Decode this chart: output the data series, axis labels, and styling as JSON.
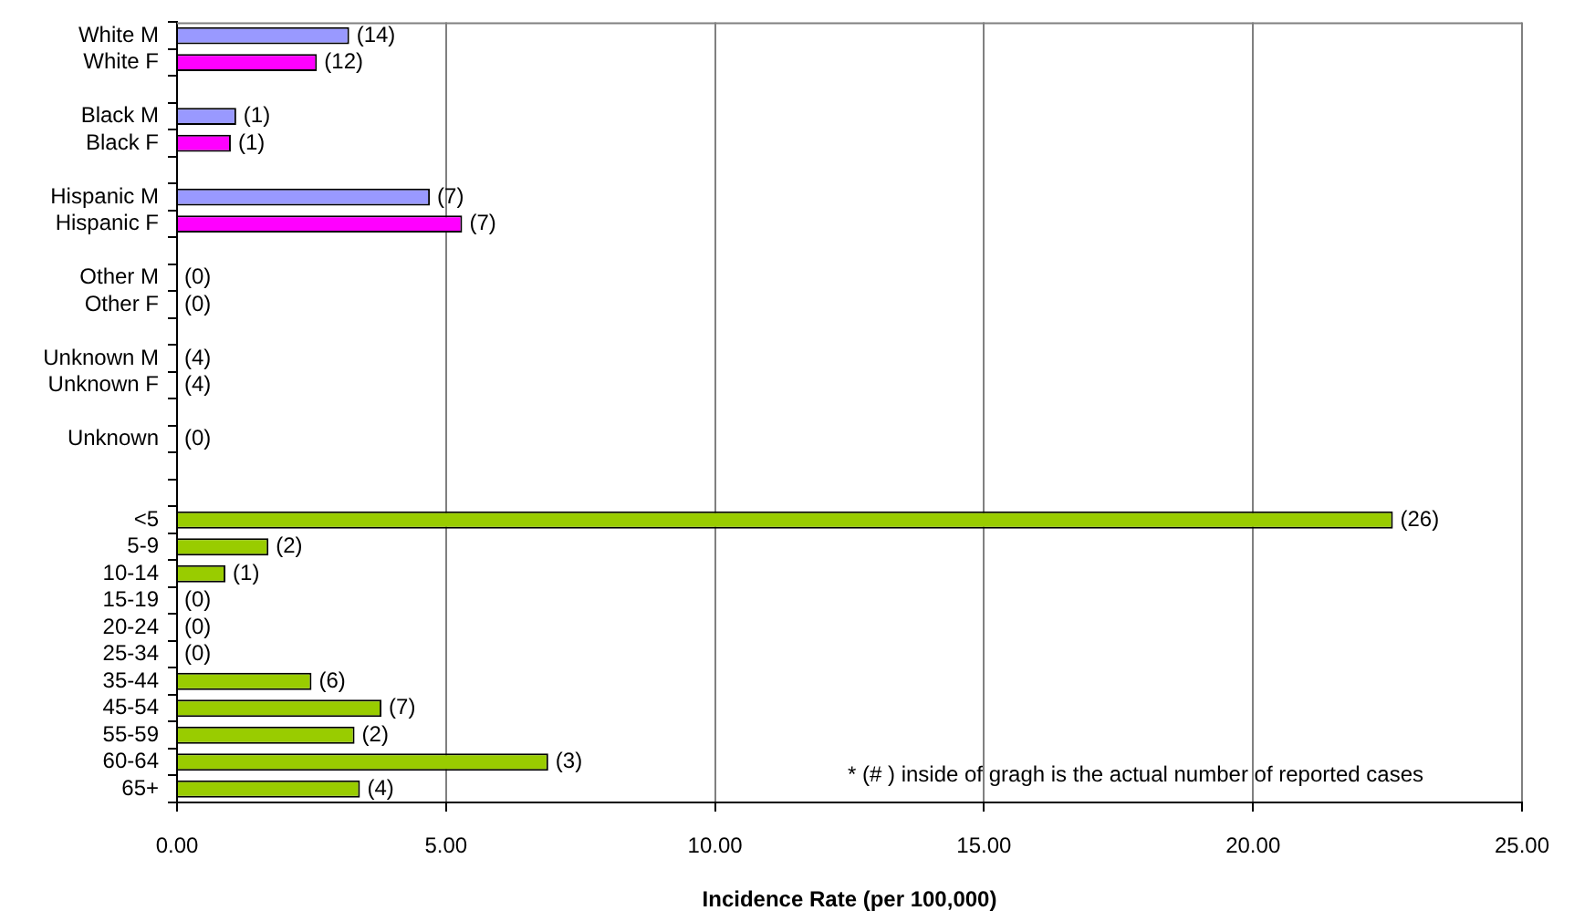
{
  "chart_data": {
    "type": "bar",
    "orientation": "horizontal",
    "categories": [
      "White M",
      "White F",
      null,
      "Black M",
      "Black F",
      null,
      "Hispanic M",
      "Hispanic F",
      null,
      "Other M",
      "Other F",
      null,
      "Unknown M",
      "Unknown F",
      null,
      "Unknown",
      null,
      null,
      "<5",
      "5-9",
      "10-14",
      "15-19",
      "20-24",
      "25-34",
      "35-44",
      "45-54",
      "55-59",
      "60-64",
      "65+"
    ],
    "values": [
      3.2,
      2.6,
      null,
      1.1,
      1.0,
      null,
      4.7,
      5.3,
      null,
      0,
      0,
      null,
      0,
      0,
      null,
      0,
      null,
      null,
      22.6,
      1.7,
      0.9,
      0,
      0,
      0,
      2.5,
      3.8,
      3.3,
      6.9,
      3.4
    ],
    "colors": [
      "#9999ff",
      "#ff00ff",
      null,
      "#9999ff",
      "#ff00ff",
      null,
      "#9999ff",
      "#ff00ff",
      null,
      "#9999ff",
      "#ff00ff",
      null,
      "#9999ff",
      "#ff00ff",
      null,
      "#99cc00",
      null,
      null,
      "#99cc00",
      "#99cc00",
      "#99cc00",
      "#99cc00",
      "#99cc00",
      "#99cc00",
      "#99cc00",
      "#99cc00",
      "#99cc00",
      "#99cc00",
      "#99cc00"
    ],
    "xlim": [
      0,
      25
    ],
    "xticks": [
      {
        "value": 0,
        "label": "0.00"
      },
      {
        "value": 5,
        "label": "5.00"
      },
      {
        "value": 10,
        "label": "10.00"
      },
      {
        "value": 15,
        "label": "15.00"
      },
      {
        "value": 20,
        "label": "20.00"
      },
      {
        "value": 25,
        "label": "25.00"
      }
    ],
    "xlabel": "Incidence Rate (per 100,000)",
    "grid": "x",
    "annotations": [
      {
        "text": "(14)",
        "x": 3.2,
        "y": "White M"
      },
      {
        "text": "(12)",
        "x": 2.6,
        "y": "White F"
      },
      {
        "text": "(1)",
        "x": 1.1,
        "y": "Black M"
      },
      {
        "text": "(1)",
        "x": 1.0,
        "y": "Black F"
      },
      {
        "text": "(7)",
        "x": 4.7,
        "y": "Hispanic M"
      },
      {
        "text": "(7)",
        "x": 5.3,
        "y": "Hispanic F"
      },
      {
        "text": "(0)",
        "x": 0,
        "y": "Other M"
      },
      {
        "text": "(0)",
        "x": 0,
        "y": "Other F"
      },
      {
        "text": "(4)",
        "x": 0,
        "y": "Unknown M"
      },
      {
        "text": "(4)",
        "x": 0,
        "y": "Unknown F"
      },
      {
        "text": "(0)",
        "x": 0,
        "y": "Unknown"
      },
      {
        "text": "(26)",
        "x": 22.6,
        "y": "<5"
      },
      {
        "text": "(2)",
        "x": 1.7,
        "y": "5-9"
      },
      {
        "text": "(1)",
        "x": 0.9,
        "y": "10-14"
      },
      {
        "text": "(0)",
        "x": 0,
        "y": "15-19"
      },
      {
        "text": "(0)",
        "x": 0,
        "y": "20-24"
      },
      {
        "text": "(0)",
        "x": 0,
        "y": "25-34"
      },
      {
        "text": "(6)",
        "x": 2.5,
        "y": "35-44"
      },
      {
        "text": "(7)",
        "x": 3.8,
        "y": "45-54"
      },
      {
        "text": "(2)",
        "x": 3.3,
        "y": "55-59"
      },
      {
        "text": "(3)",
        "x": 6.9,
        "y": "60-64"
      },
      {
        "text": "(4)",
        "x": 3.4,
        "y": "65+"
      },
      "* (# ) inside of gragh is the actual number of reported cases"
    ]
  }
}
